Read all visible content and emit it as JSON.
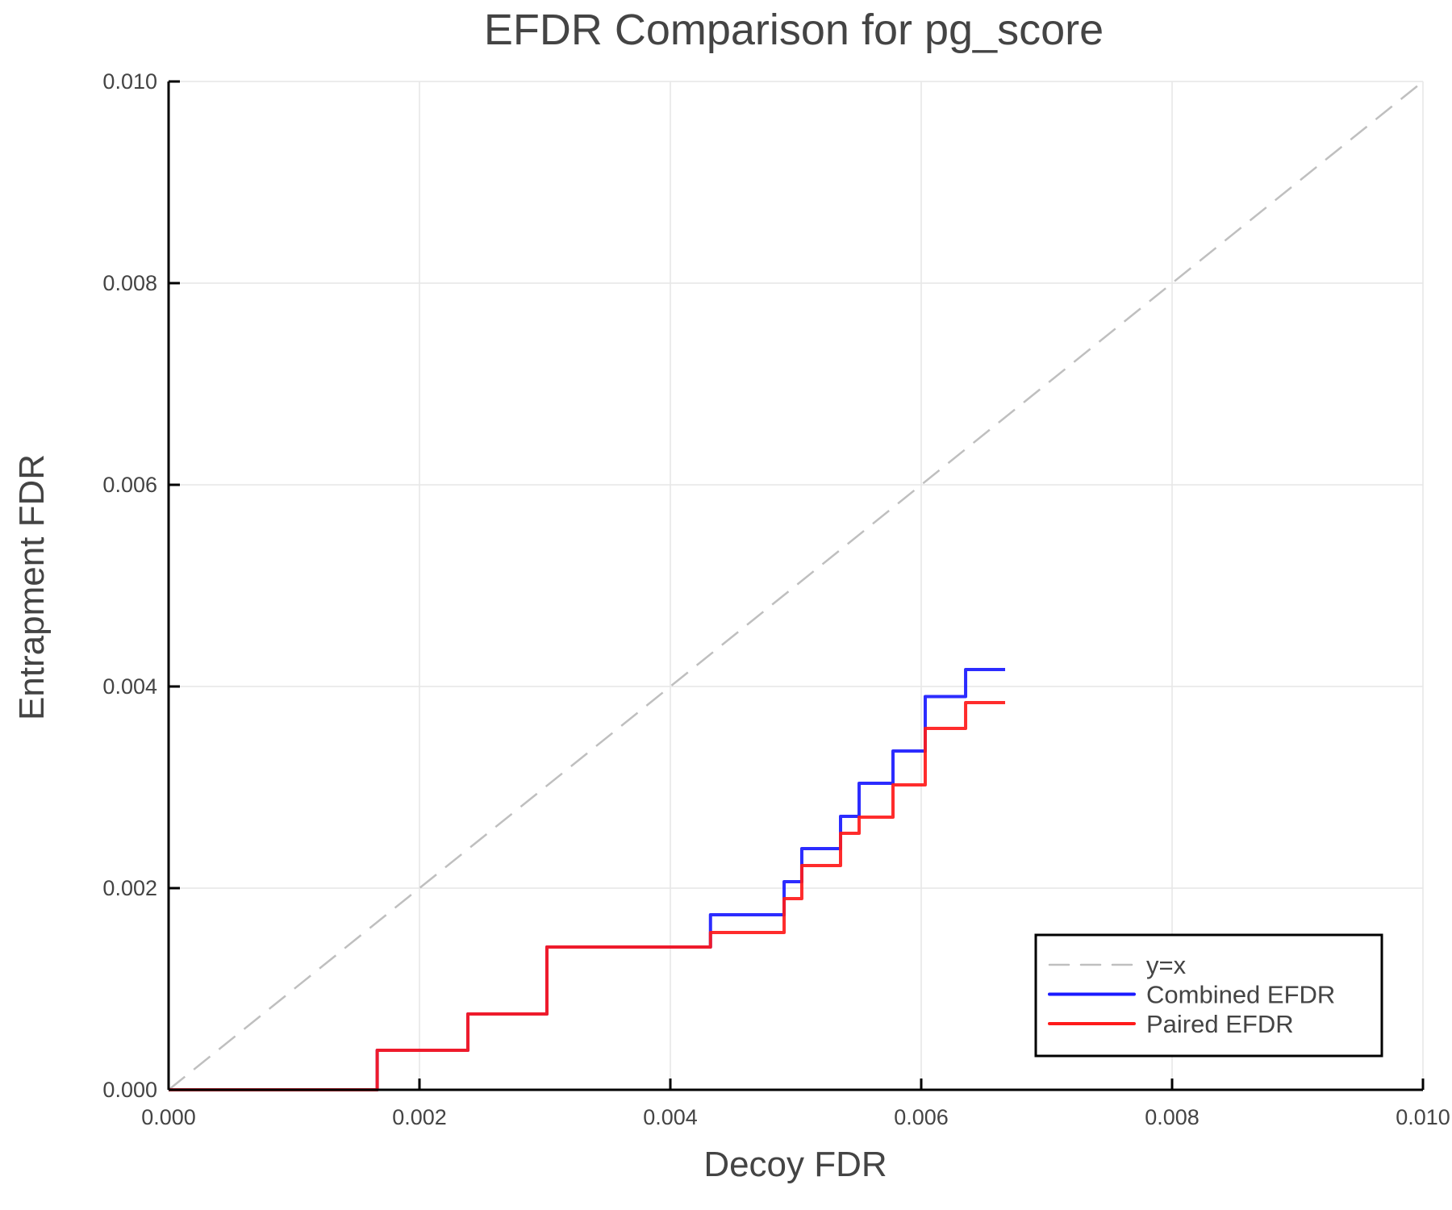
{
  "chart_data": {
    "type": "line",
    "title": "EFDR Comparison for pg_score",
    "xlabel": "Decoy FDR",
    "ylabel": "Entrapment FDR",
    "xlim": [
      0,
      0.01
    ],
    "ylim": [
      0,
      0.01
    ],
    "xticks": [
      "0.000",
      "0.002",
      "0.004",
      "0.006",
      "0.008",
      "0.010"
    ],
    "yticks": [
      "0.000",
      "0.002",
      "0.004",
      "0.006",
      "0.008",
      "0.010"
    ],
    "grid": true,
    "legend_position": "bottom-right",
    "series": [
      {
        "name": "y=x",
        "style": "dashed",
        "color": "#bfbfbf",
        "x": [
          0,
          0.01
        ],
        "y": [
          0,
          0.01
        ]
      },
      {
        "name": "Combined EFDR",
        "style": "step",
        "color": "#1a1aff",
        "x": [
          0,
          0.001663,
          0.002386,
          0.003016,
          0.00432,
          0.004907,
          0.005048,
          0.005357,
          0.005505,
          0.005775,
          0.006032,
          0.006354,
          0.006669
        ],
        "y": [
          0,
          0.000392,
          0.000752,
          0.001416,
          0.001736,
          0.002064,
          0.002392,
          0.002712,
          0.00304,
          0.00336,
          0.0039,
          0.004168,
          0.004168
        ]
      },
      {
        "name": "Paired EFDR",
        "style": "step",
        "color": "#ff1a1a",
        "x": [
          0,
          0.001663,
          0.002386,
          0.003016,
          0.00432,
          0.004907,
          0.005048,
          0.005357,
          0.005505,
          0.005775,
          0.006032,
          0.006354,
          0.006669
        ],
        "y": [
          0,
          0.000392,
          0.000752,
          0.001416,
          0.00156,
          0.001896,
          0.002224,
          0.002544,
          0.002704,
          0.003024,
          0.003584,
          0.00384,
          0.00384
        ]
      }
    ]
  }
}
